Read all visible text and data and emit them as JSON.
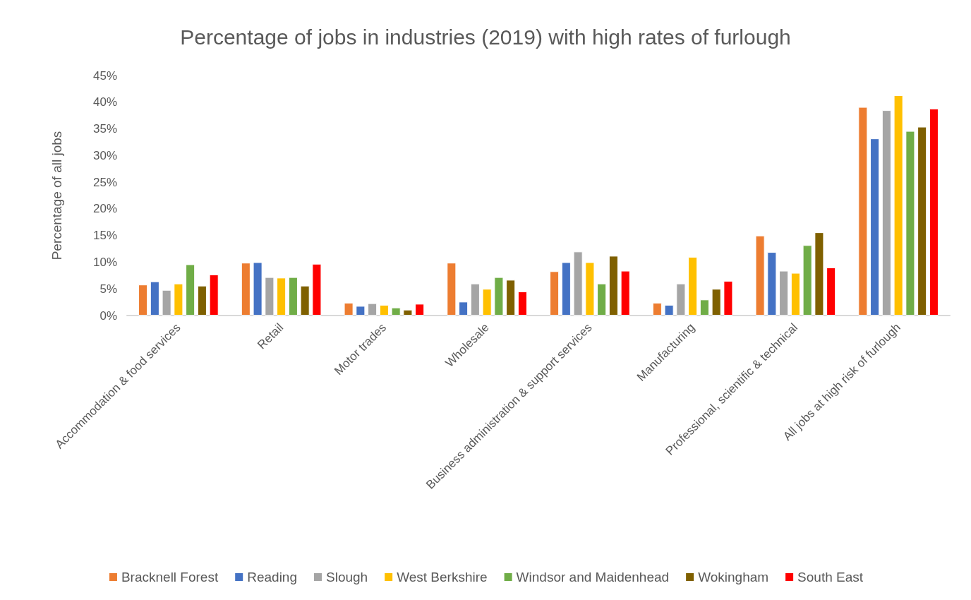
{
  "chart_data": {
    "type": "bar",
    "title": "Percentage of jobs in industries (2019) with high rates of furlough",
    "ylabel": "Percentage of all jobs",
    "categories": [
      "Accommodation & food services",
      "Retail",
      "Motor trades",
      "Wholesale",
      "Business administration & support services",
      "Manufacturing",
      "Professional, scientific & technical",
      "All jobs at high risk of furlough"
    ],
    "series": [
      {
        "name": "Bracknell Forest",
        "color": "#ed7d31",
        "values": [
          5.8,
          9.9,
          2.4,
          9.9,
          8.3,
          2.4,
          15.0,
          39.1
        ]
      },
      {
        "name": "Reading",
        "color": "#4472c4",
        "values": [
          6.4,
          10.0,
          1.8,
          2.6,
          10.0,
          2.0,
          11.9,
          33.2
        ]
      },
      {
        "name": "Slough",
        "color": "#a5a5a5",
        "values": [
          4.8,
          7.2,
          2.3,
          6.0,
          12.0,
          6.0,
          8.4,
          38.5
        ]
      },
      {
        "name": "West Berkshire",
        "color": "#ffc000",
        "values": [
          6.0,
          7.1,
          2.0,
          5.0,
          10.0,
          11.0,
          8.0,
          41.3
        ]
      },
      {
        "name": "Windsor and Maidenhead",
        "color": "#70ad47",
        "values": [
          9.6,
          7.2,
          1.5,
          7.2,
          6.0,
          3.0,
          13.2,
          34.6
        ]
      },
      {
        "name": "Wokingham",
        "color": "#7f6000",
        "values": [
          5.6,
          5.6,
          1.1,
          6.7,
          11.2,
          5.0,
          15.6,
          35.4
        ]
      },
      {
        "name": "South East",
        "color": "#ff0000",
        "values": [
          7.7,
          9.7,
          2.2,
          4.5,
          8.4,
          6.5,
          9.0,
          38.8
        ]
      }
    ],
    "ylim": [
      0,
      45
    ],
    "yticks": [
      {
        "value": 0,
        "label": "0%"
      },
      {
        "value": 5,
        "label": "5%"
      },
      {
        "value": 10,
        "label": "10%"
      },
      {
        "value": 15,
        "label": "15%"
      },
      {
        "value": 20,
        "label": "20%"
      },
      {
        "value": 25,
        "label": "25%"
      },
      {
        "value": 30,
        "label": "30%"
      },
      {
        "value": 35,
        "label": "35%"
      },
      {
        "value": 40,
        "label": "40%"
      },
      {
        "value": 45,
        "label": "45%"
      }
    ],
    "grid": false,
    "legend": "bottom"
  }
}
